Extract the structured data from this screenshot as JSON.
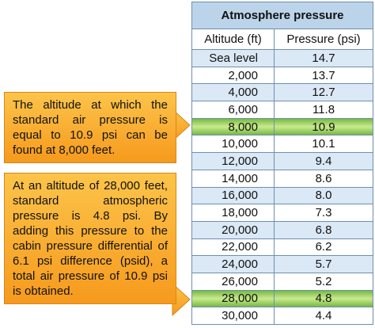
{
  "table": {
    "title": "Atmosphere pressure",
    "columns": [
      "Altitude (ft)",
      "Pressure (psi)"
    ],
    "rows": [
      [
        "Sea level",
        "14.7"
      ],
      [
        "2,000",
        "13.7"
      ],
      [
        "4,000",
        "12.7"
      ],
      [
        "6,000",
        "11.8"
      ],
      [
        "8,000",
        "10.9"
      ],
      [
        "10,000",
        "10.1"
      ],
      [
        "12,000",
        "9.4"
      ],
      [
        "14,000",
        "8.6"
      ],
      [
        "16,000",
        "8.0"
      ],
      [
        "18,000",
        "7.3"
      ],
      [
        "20,000",
        "6.8"
      ],
      [
        "22,000",
        "6.2"
      ],
      [
        "24,000",
        "5.7"
      ],
      [
        "26,000",
        "5.2"
      ],
      [
        "28,000",
        "4.8"
      ],
      [
        "30,000",
        "4.4"
      ]
    ]
  },
  "callouts": [
    "The altitude at which the standard air pressure is equal to 10.9 psi can be found at 8,000 feet.",
    "At an altitude of 28,000 feet, standard atmospheric pressure is 4.8 psi. By adding this pressure to the cabin pressure differential of 6.1 psi difference (psid), a total air pressure of 10.9 psi is obtained."
  ]
}
